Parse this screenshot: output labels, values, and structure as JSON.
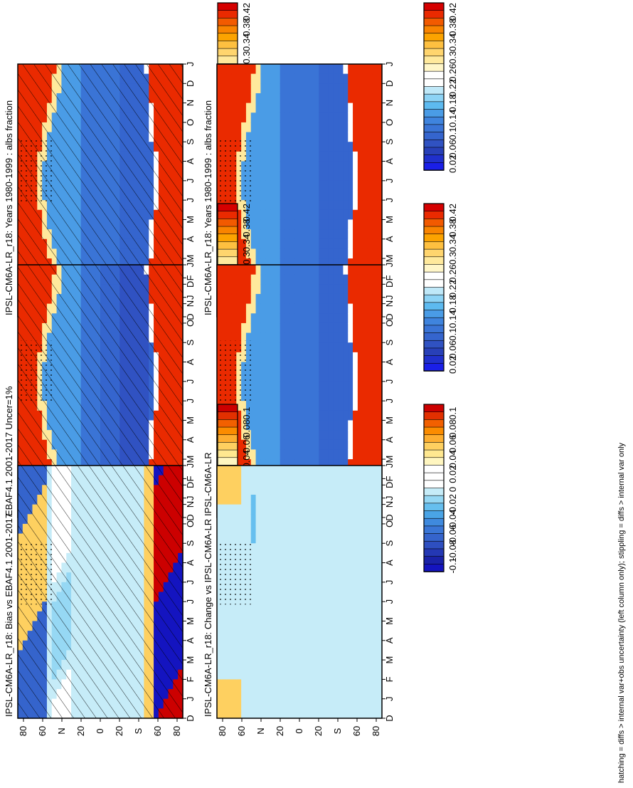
{
  "footer": "hatching = diffs > internal var+obs uncertainty (left column only); stippling = diffs > internal var only",
  "months": [
    "D",
    "J",
    "F",
    "M",
    "A",
    "M",
    "J",
    "J",
    "A",
    "S",
    "O",
    "N",
    "D",
    "J"
  ],
  "lat_ticks": [
    "80",
    "60",
    "N",
    "20",
    "0",
    "20",
    "S",
    "60",
    "80"
  ],
  "colorbars": {
    "abs": {
      "labels": [
        "0.42",
        "0.38",
        "0.34",
        "0.3",
        "0.26",
        "0.22",
        "0.18",
        "0.14",
        "0.1",
        "0.06",
        "0.02"
      ],
      "colors": [
        "#d50000",
        "#ea2a00",
        "#f25a00",
        "#f98400",
        "#fca300",
        "#fec040",
        "#ffd56e",
        "#ffe99c",
        "#fff6c8",
        "#ffffff",
        "#ffffff",
        "#bfe8f8",
        "#8dd3f5",
        "#5dbaf0",
        "#4a9ce6",
        "#3f84de",
        "#3a74d6",
        "#3565ce",
        "#3052c2",
        "#2840b8",
        "#2030cc",
        "#1a1fe8"
      ]
    },
    "diff": {
      "labels": [
        "0.1",
        "0.08",
        "0.06",
        "0.04",
        "0.02",
        "0",
        "-0.02",
        "-0.04",
        "-0.06",
        "-0.08",
        "-0.1"
      ],
      "colors": [
        "#cc0000",
        "#e23000",
        "#f26000",
        "#fb8c00",
        "#fdae30",
        "#fed060",
        "#ffe890",
        "#fff6c0",
        "#ffffff",
        "#ffffff",
        "#ffffff",
        "#c6ecf8",
        "#96d8f4",
        "#66bfef",
        "#4aa4e6",
        "#3f8ade",
        "#3a76d6",
        "#3564cc",
        "#2e4fc0",
        "#2438b4",
        "#1a22a8",
        "#1414c0"
      ]
    }
  },
  "panels": [
    {
      "title": "IPSL-CM6A-LR_r18: Years 1980-1999 : albs fraction",
      "scale": "abs"
    },
    {
      "title": "IPSL-CM6A-LR_r18: Years 1980-1999 : albs fraction",
      "scale": "abs"
    },
    {
      "title": "EBAF4.1 2001-2017 Uncer=1%",
      "scale": "abs"
    },
    {
      "title": "IPSL-CM6A-LR",
      "scale": "abs"
    },
    {
      "title": "IPSL-CM6A-LR_r18: Bias vs EBAF4.1 2001-2017",
      "scale": "diff"
    },
    {
      "title": "IPSL-CM6A-LR_r18: Change vs IPSL-CM6A-LR",
      "scale": "diff"
    }
  ],
  "chart_data": [
    {
      "type": "heatmap",
      "title": "IPSL-CM6A-LR_r18: Years 1980-1999 : albs fraction",
      "x_categories": [
        "D",
        "J",
        "F",
        "M",
        "A",
        "M",
        "J",
        "J",
        "A",
        "S",
        "O",
        "N",
        "D",
        "J"
      ],
      "y_ticks": [
        "80",
        "60",
        "N",
        "20",
        "0",
        "20",
        "S",
        "60",
        "80"
      ],
      "value_range": [
        0.02,
        0.42
      ],
      "hatching": true,
      "stippling": true
    },
    {
      "type": "heatmap",
      "title": "IPSL-CM6A-LR_r18: Years 1980-1999 : albs fraction",
      "x_categories": [
        "D",
        "J",
        "F",
        "M",
        "A",
        "M",
        "J",
        "J",
        "A",
        "S",
        "O",
        "N",
        "D",
        "J"
      ],
      "y_ticks": [
        "80",
        "60",
        "N",
        "20",
        "0",
        "20",
        "S",
        "60",
        "80"
      ],
      "value_range": [
        0.02,
        0.42
      ],
      "hatching": false,
      "stippling": true
    },
    {
      "type": "heatmap",
      "title": "EBAF4.1 2001-2017 Uncer=1%",
      "x_categories": [
        "D",
        "J",
        "F",
        "M",
        "A",
        "M",
        "J",
        "J",
        "A",
        "S",
        "O",
        "N",
        "D",
        "J"
      ],
      "y_ticks": [
        "80",
        "60",
        "N",
        "20",
        "0",
        "20",
        "S",
        "60",
        "80"
      ],
      "value_range": [
        0.02,
        0.42
      ],
      "hatching": true,
      "stippling": true
    },
    {
      "type": "heatmap",
      "title": "IPSL-CM6A-LR",
      "x_categories": [
        "D",
        "J",
        "F",
        "M",
        "A",
        "M",
        "J",
        "J",
        "A",
        "S",
        "O",
        "N",
        "D",
        "J"
      ],
      "y_ticks": [
        "80",
        "60",
        "N",
        "20",
        "0",
        "20",
        "S",
        "60",
        "80"
      ],
      "value_range": [
        0.02,
        0.42
      ],
      "hatching": false,
      "stippling": true
    },
    {
      "type": "heatmap",
      "title": "IPSL-CM6A-LR_r18: Bias vs EBAF4.1 2001-2017",
      "x_categories": [
        "D",
        "J",
        "F",
        "M",
        "A",
        "M",
        "J",
        "J",
        "A",
        "S",
        "O",
        "N",
        "D",
        "J"
      ],
      "y_ticks": [
        "80",
        "60",
        "N",
        "20",
        "0",
        "20",
        "S",
        "60",
        "80"
      ],
      "value_range": [
        -0.1,
        0.1
      ],
      "hatching": true,
      "stippling": true
    },
    {
      "type": "heatmap",
      "title": "IPSL-CM6A-LR_r18: Change vs IPSL-CM6A-LR",
      "x_categories": [
        "D",
        "J",
        "F",
        "M",
        "A",
        "M",
        "J",
        "J",
        "A",
        "S",
        "O",
        "N",
        "D",
        "J"
      ],
      "y_ticks": [
        "80",
        "60",
        "N",
        "20",
        "0",
        "20",
        "S",
        "60",
        "80"
      ],
      "value_range": [
        -0.1,
        0.1
      ],
      "hatching": false,
      "stippling": true
    }
  ]
}
